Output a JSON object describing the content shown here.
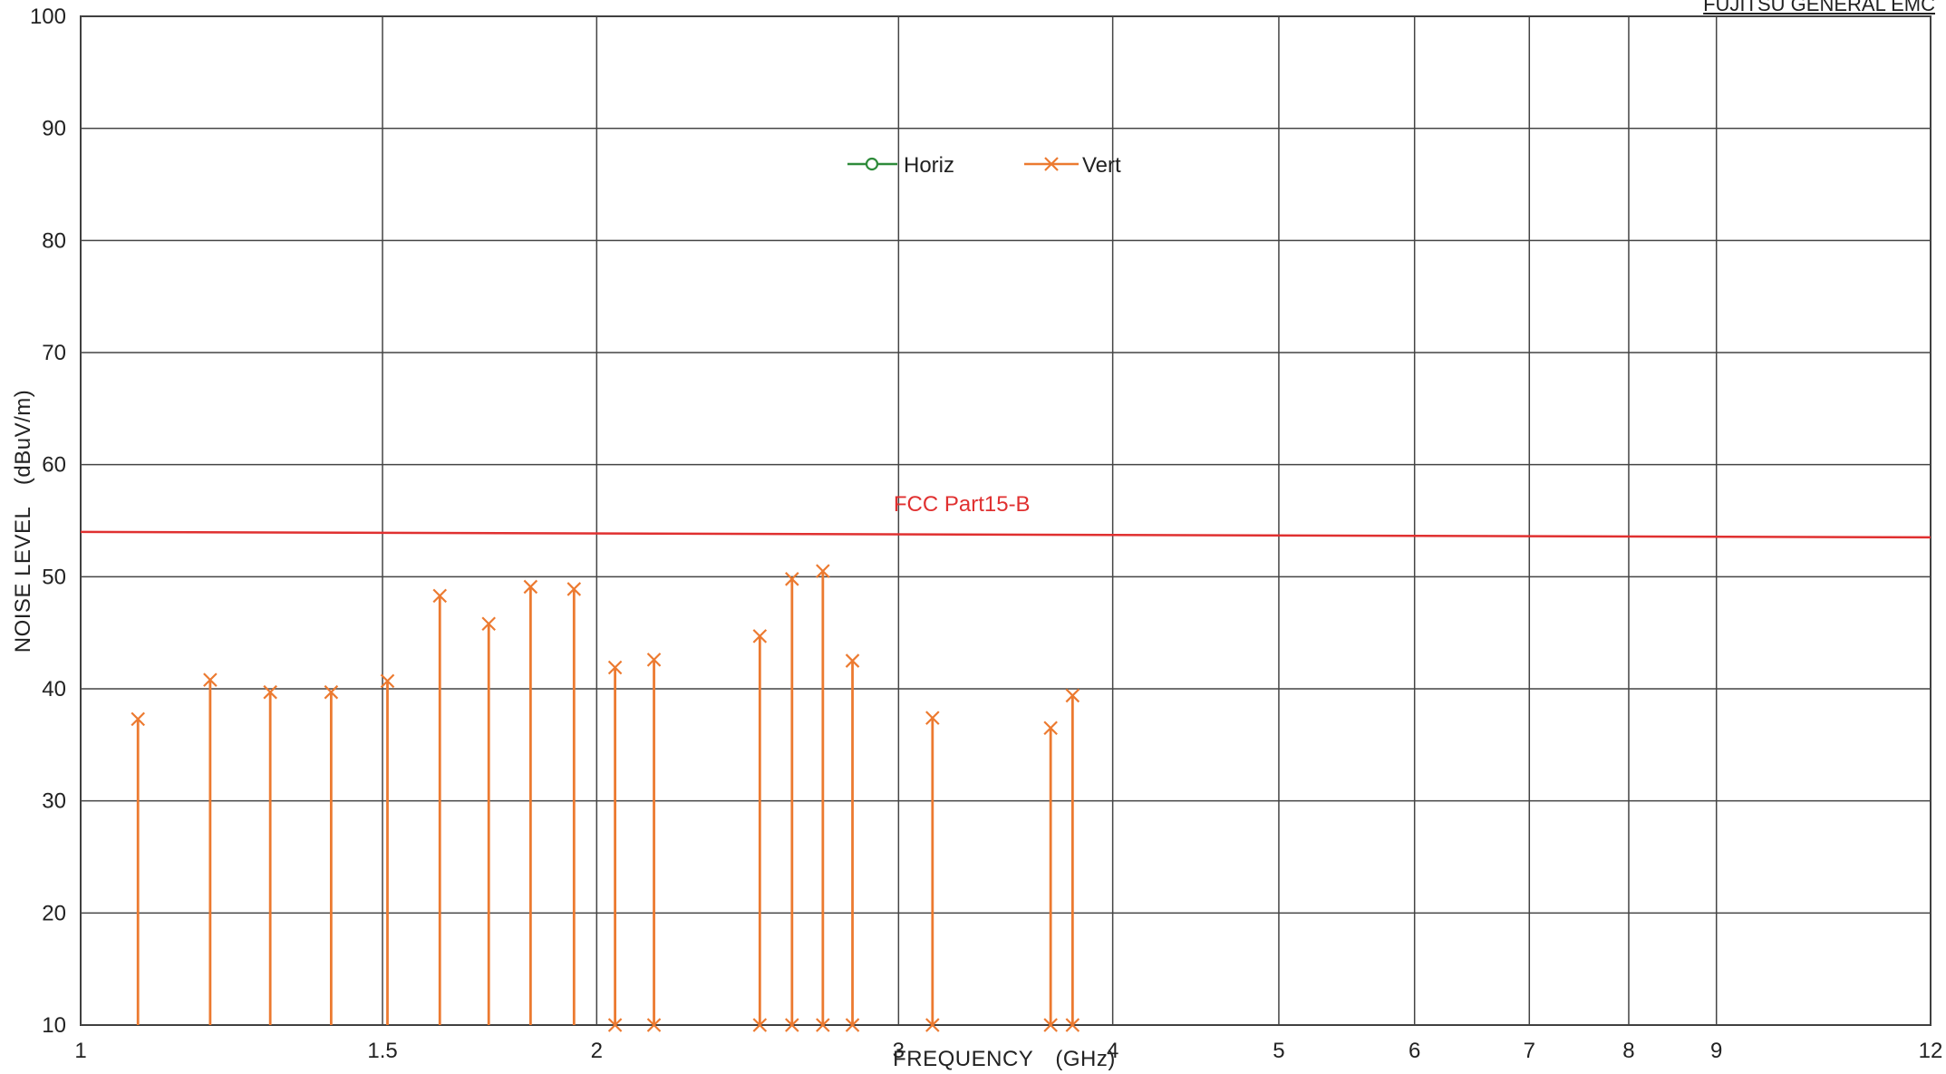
{
  "header": {
    "lab_name": "FUJITSU GENERAL EMC"
  },
  "chart_data": {
    "type": "scatter",
    "xlabel": "FREQUENCY　(GHz)",
    "ylabel": "NOISE LEVEL　(dBuV/m)",
    "x_scale": "log",
    "xlim": [
      1,
      12
    ],
    "ylim": [
      10,
      100
    ],
    "x_ticks": [
      1,
      1.5,
      2,
      3,
      4,
      5,
      6,
      7,
      8,
      9,
      12
    ],
    "x_tick_labels": [
      "1",
      "1.5",
      "2",
      "3",
      "4",
      "5",
      "6",
      "7",
      "8",
      "9",
      "12"
    ],
    "y_ticks": [
      10,
      20,
      30,
      40,
      50,
      60,
      70,
      80,
      90,
      100
    ],
    "y_tick_labels": [
      "10",
      "20",
      "30",
      "40",
      "50",
      "60",
      "70",
      "80",
      "90",
      "100"
    ],
    "grid": true,
    "legend_position": "top-center",
    "series": [
      {
        "name": "Horiz",
        "color": "#2e8b3a",
        "marker": "circle",
        "points": []
      },
      {
        "name": "Vert",
        "color": "#ec7a30",
        "marker": "x",
        "points": [
          {
            "x": 1.08,
            "y": 37.3
          },
          {
            "x": 1.19,
            "y": 40.8
          },
          {
            "x": 1.29,
            "y": 39.7
          },
          {
            "x": 1.4,
            "y": 39.7
          },
          {
            "x": 1.51,
            "y": 40.7
          },
          {
            "x": 1.62,
            "y": 48.3
          },
          {
            "x": 1.73,
            "y": 45.8
          },
          {
            "x": 1.83,
            "y": 49.1
          },
          {
            "x": 1.94,
            "y": 48.9
          },
          {
            "x": 2.05,
            "y": 41.9
          },
          {
            "x": 2.16,
            "y": 42.6
          },
          {
            "x": 2.49,
            "y": 44.7
          },
          {
            "x": 2.6,
            "y": 49.8
          },
          {
            "x": 2.71,
            "y": 50.5
          },
          {
            "x": 2.82,
            "y": 42.5
          },
          {
            "x": 3.14,
            "y": 37.4
          },
          {
            "x": 3.68,
            "y": 36.5
          },
          {
            "x": 3.79,
            "y": 39.4
          }
        ],
        "baseline_markers_x": [
          2.05,
          2.16,
          2.49,
          2.6,
          2.71,
          2.82,
          3.14,
          3.68,
          3.79
        ]
      }
    ],
    "limit_line": {
      "name": "FCC Part15-B",
      "y": 54,
      "color": "#e03030"
    }
  }
}
